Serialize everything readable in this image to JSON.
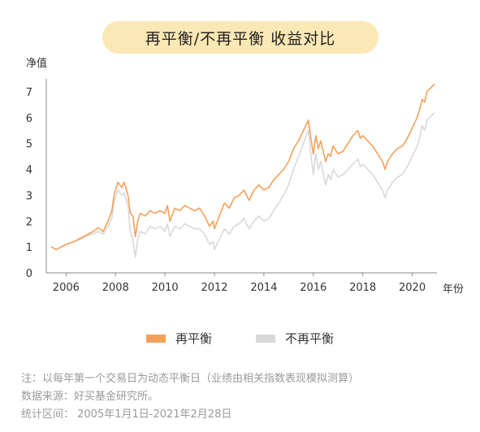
{
  "title": "再平衡/不再平衡 收益对比",
  "notes": [
    "注：以每年第一个交易日为动态平衡日（业绩由相关指数表现模拟测算）",
    "数据来源：好买基金研究所。",
    "统计区间：  2005年1月1日-2021年2月28日"
  ],
  "colors": {
    "rebalance": "#f5a05a",
    "no_rebalance": "#d9d9d9",
    "title_bg": "#fce8b4"
  },
  "chart_data": {
    "type": "line",
    "ylabel": "净值",
    "xlabel": "年份",
    "xlim": [
      2005.2,
      2021.0
    ],
    "ylim": [
      0,
      7.5
    ],
    "x_ticks": [
      2006,
      2008,
      2010,
      2012,
      2014,
      2016,
      2018,
      2020
    ],
    "y_ticks": [
      0,
      1,
      2,
      3,
      4,
      5,
      6,
      7
    ],
    "grid": false,
    "legend": "bottom",
    "series": [
      {
        "name": "再平衡",
        "color": "#f5a05a",
        "x": [
          2005.4,
          2005.6,
          2005.8,
          2006.0,
          2006.3,
          2006.6,
          2006.9,
          2007.1,
          2007.3,
          2007.5,
          2007.7,
          2007.85,
          2007.95,
          2008.1,
          2008.25,
          2008.35,
          2008.5,
          2008.6,
          2008.7,
          2008.8,
          2008.9,
          2009.0,
          2009.2,
          2009.4,
          2009.6,
          2009.8,
          2010.0,
          2010.1,
          2010.2,
          2010.4,
          2010.6,
          2010.8,
          2011.0,
          2011.2,
          2011.4,
          2011.6,
          2011.8,
          2011.95,
          2012.0,
          2012.2,
          2012.4,
          2012.6,
          2012.8,
          2013.0,
          2013.2,
          2013.4,
          2013.6,
          2013.8,
          2014.0,
          2014.2,
          2014.4,
          2014.6,
          2014.8,
          2015.0,
          2015.2,
          2015.4,
          2015.6,
          2015.8,
          2015.9,
          2016.0,
          2016.1,
          2016.2,
          2016.3,
          2016.5,
          2016.6,
          2016.7,
          2016.8,
          2017.0,
          2017.2,
          2017.4,
          2017.6,
          2017.8,
          2017.9,
          2018.0,
          2018.2,
          2018.4,
          2018.6,
          2018.8,
          2018.9,
          2019.0,
          2019.2,
          2019.4,
          2019.6,
          2019.8,
          2020.0,
          2020.2,
          2020.3,
          2020.4,
          2020.5,
          2020.6,
          2020.8,
          2020.9
        ],
        "values": [
          1.0,
          0.9,
          1.0,
          1.1,
          1.2,
          1.35,
          1.5,
          1.6,
          1.75,
          1.6,
          2.0,
          2.4,
          3.05,
          3.5,
          3.3,
          3.5,
          3.0,
          2.3,
          2.2,
          1.4,
          2.0,
          2.3,
          2.2,
          2.4,
          2.3,
          2.4,
          2.3,
          2.6,
          2.0,
          2.5,
          2.4,
          2.6,
          2.5,
          2.4,
          2.5,
          2.2,
          1.8,
          2.0,
          1.7,
          2.2,
          2.7,
          2.5,
          2.9,
          3.0,
          3.2,
          2.8,
          3.2,
          3.4,
          3.2,
          3.3,
          3.6,
          3.8,
          4.0,
          4.3,
          4.8,
          5.1,
          5.5,
          5.9,
          5.2,
          4.6,
          5.3,
          4.8,
          5.1,
          4.3,
          4.6,
          4.5,
          4.9,
          4.6,
          4.7,
          5.0,
          5.3,
          5.5,
          5.2,
          5.3,
          5.1,
          4.9,
          4.6,
          4.3,
          4.0,
          4.3,
          4.6,
          4.8,
          4.9,
          5.2,
          5.6,
          6.0,
          6.3,
          6.7,
          6.6,
          7.0,
          7.2,
          7.3
        ]
      },
      {
        "name": "不再平衡",
        "color": "#d9d9d9",
        "x": [
          2005.4,
          2005.6,
          2005.8,
          2006.0,
          2006.3,
          2006.6,
          2006.9,
          2007.1,
          2007.3,
          2007.5,
          2007.7,
          2007.85,
          2007.95,
          2008.1,
          2008.25,
          2008.35,
          2008.5,
          2008.6,
          2008.7,
          2008.8,
          2008.9,
          2009.0,
          2009.2,
          2009.4,
          2009.6,
          2009.8,
          2010.0,
          2010.1,
          2010.2,
          2010.4,
          2010.6,
          2010.8,
          2011.0,
          2011.2,
          2011.4,
          2011.6,
          2011.8,
          2011.95,
          2012.0,
          2012.2,
          2012.4,
          2012.6,
          2012.8,
          2013.0,
          2013.2,
          2013.4,
          2013.6,
          2013.8,
          2014.0,
          2014.2,
          2014.4,
          2014.6,
          2014.8,
          2015.0,
          2015.2,
          2015.4,
          2015.6,
          2015.8,
          2015.9,
          2016.0,
          2016.1,
          2016.2,
          2016.3,
          2016.5,
          2016.6,
          2016.7,
          2016.8,
          2017.0,
          2017.2,
          2017.4,
          2017.6,
          2017.8,
          2017.9,
          2018.0,
          2018.2,
          2018.4,
          2018.6,
          2018.8,
          2018.9,
          2019.0,
          2019.2,
          2019.4,
          2019.6,
          2019.8,
          2020.0,
          2020.2,
          2020.3,
          2020.4,
          2020.5,
          2020.6,
          2020.8,
          2020.9
        ],
        "values": [
          1.0,
          0.9,
          1.0,
          1.1,
          1.2,
          1.3,
          1.45,
          1.5,
          1.6,
          1.5,
          1.8,
          2.1,
          2.8,
          3.2,
          3.0,
          3.1,
          2.6,
          1.6,
          1.3,
          0.6,
          1.3,
          1.6,
          1.5,
          1.8,
          1.7,
          1.8,
          1.6,
          1.9,
          1.4,
          1.8,
          1.7,
          1.9,
          1.8,
          1.7,
          1.7,
          1.5,
          1.1,
          1.2,
          0.9,
          1.3,
          1.7,
          1.5,
          1.8,
          1.9,
          2.1,
          1.7,
          2.0,
          2.2,
          2.0,
          2.1,
          2.4,
          2.7,
          3.0,
          3.4,
          4.0,
          4.5,
          5.0,
          5.5,
          4.6,
          3.8,
          4.6,
          4.0,
          4.3,
          3.4,
          3.8,
          3.6,
          4.0,
          3.7,
          3.8,
          4.0,
          4.2,
          4.4,
          4.1,
          4.2,
          4.0,
          3.8,
          3.5,
          3.2,
          2.9,
          3.2,
          3.5,
          3.7,
          3.8,
          4.1,
          4.5,
          4.9,
          5.2,
          5.7,
          5.5,
          5.9,
          6.1,
          6.2
        ]
      }
    ]
  }
}
